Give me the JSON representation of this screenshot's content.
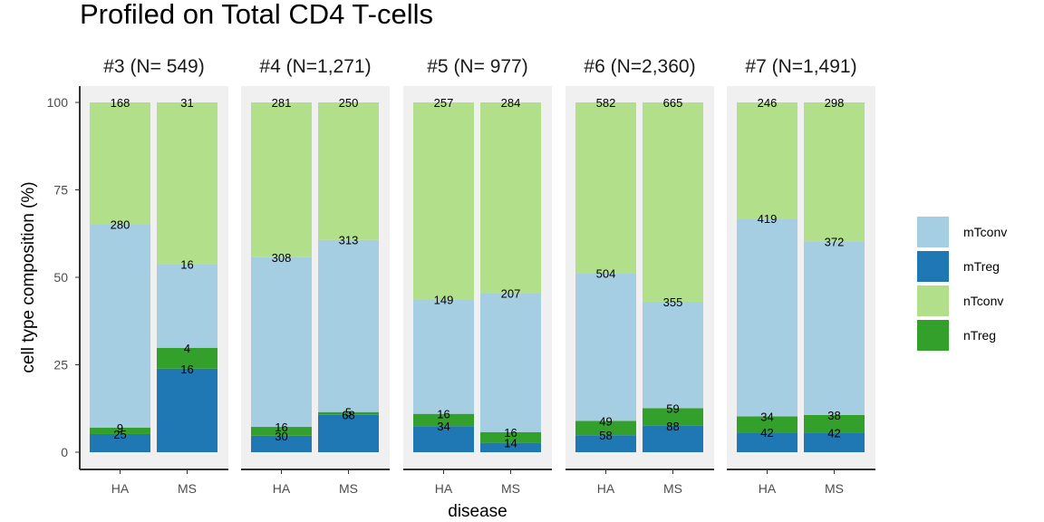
{
  "chart_data": {
    "type": "bar",
    "stacked": true,
    "normalized_percent": true,
    "title": "Profiled on Total CD4 T-cells",
    "xlabel": "disease",
    "ylabel": "cell type composition (%)",
    "ylim": [
      0,
      100
    ],
    "yticks": [
      "0",
      "25",
      "50",
      "75",
      "100"
    ],
    "categories": [
      "HA",
      "MS"
    ],
    "stack_order_bottom_to_top": [
      "mTreg",
      "nTreg",
      "mTconv",
      "nTconv"
    ],
    "legend": {
      "position": "right",
      "entries": [
        "mTconv",
        "mTreg",
        "nTconv",
        "nTreg"
      ]
    },
    "colors": {
      "mTconv": "#a6cee3",
      "mTreg": "#1f78b4",
      "nTconv": "#b2df8a",
      "nTreg": "#33a02c",
      "panel": "#f0f0f0",
      "axis": "#333333"
    },
    "panels": [
      {
        "strip": "#3 (N=  549)",
        "bars": [
          {
            "category": "HA",
            "counts": {
              "mTreg": 25,
              "nTreg": 9,
              "mTconv": 280,
              "nTconv": 168
            }
          },
          {
            "category": "MS",
            "counts": {
              "mTreg": 16,
              "nTreg": 4,
              "mTconv": 16,
              "nTconv": 31
            }
          }
        ]
      },
      {
        "strip": "#4 (N=1,271)",
        "bars": [
          {
            "category": "HA",
            "counts": {
              "mTreg": 30,
              "nTreg": 16,
              "mTconv": 308,
              "nTconv": 281
            }
          },
          {
            "category": "MS",
            "counts": {
              "mTreg": 68,
              "nTreg": 5,
              "mTconv": 313,
              "nTconv": 250
            }
          }
        ]
      },
      {
        "strip": "#5 (N=  977)",
        "bars": [
          {
            "category": "HA",
            "counts": {
              "mTreg": 34,
              "nTreg": 16,
              "mTconv": 149,
              "nTconv": 257
            }
          },
          {
            "category": "MS",
            "counts": {
              "mTreg": 14,
              "nTreg": 16,
              "mTconv": 207,
              "nTconv": 284
            }
          }
        ]
      },
      {
        "strip": "#6 (N=2,360)",
        "bars": [
          {
            "category": "HA",
            "counts": {
              "mTreg": 58,
              "nTreg": 49,
              "mTconv": 504,
              "nTconv": 582
            }
          },
          {
            "category": "MS",
            "counts": {
              "mTreg": 88,
              "nTreg": 59,
              "mTconv": 355,
              "nTconv": 665
            }
          }
        ]
      },
      {
        "strip": "#7 (N=1,491)",
        "bars": [
          {
            "category": "HA",
            "counts": {
              "mTreg": 42,
              "nTreg": 34,
              "mTconv": 419,
              "nTconv": 246
            }
          },
          {
            "category": "MS",
            "counts": {
              "mTreg": 42,
              "nTreg": 38,
              "mTconv": 372,
              "nTconv": 298
            }
          }
        ]
      }
    ]
  }
}
